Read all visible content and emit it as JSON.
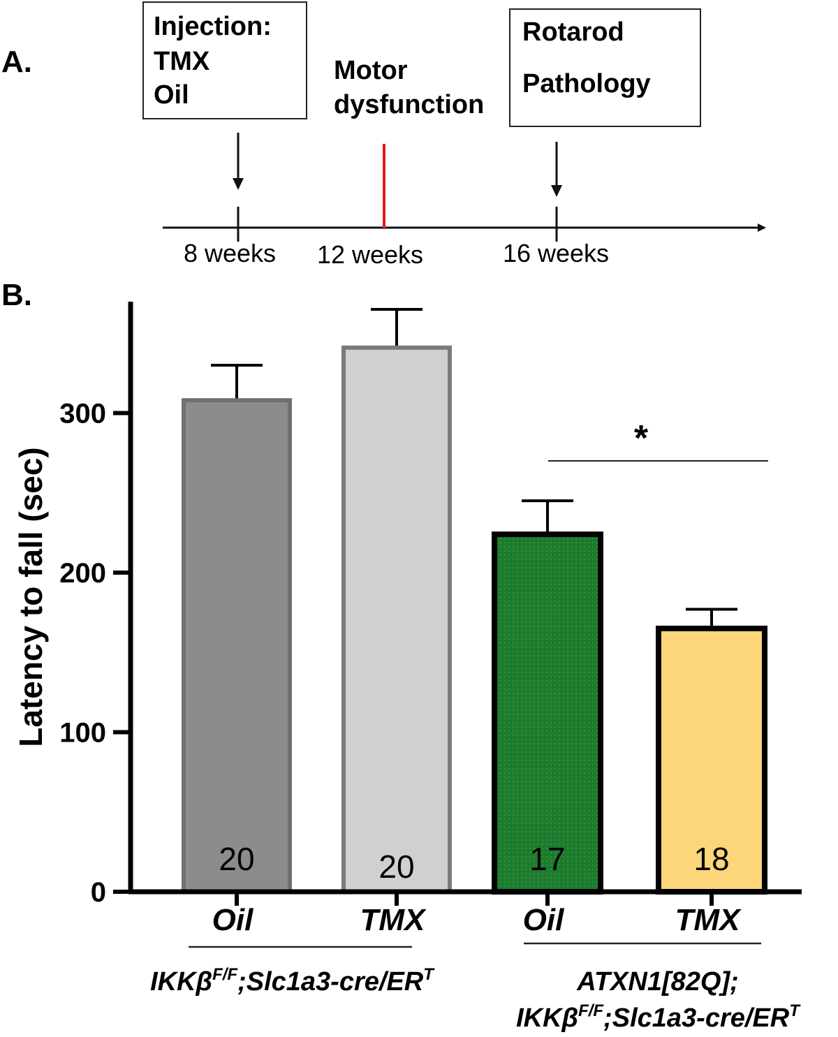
{
  "panel_a": {
    "label": "A.",
    "box_injection": [
      "Injection:",
      "TMX",
      "Oil"
    ],
    "motor_label": [
      "Motor",
      "dysfunction"
    ],
    "box_rotarod": [
      "Rotarod",
      "Pathology"
    ],
    "timeline_ticks": [
      "8 weeks",
      "12 weeks",
      "16 weeks"
    ],
    "colors": {
      "motor_marker": "#e01b1b",
      "line": "#111111"
    }
  },
  "panel_b": {
    "label": "B."
  },
  "chart_data": {
    "type": "bar",
    "ylabel": "Latency to fall (sec)",
    "ylim": [
      0,
      380
    ],
    "yticks": [
      0,
      100,
      200,
      300
    ],
    "categories": [
      "Oil",
      "TMX",
      "Oil",
      "TMX"
    ],
    "values": [
      308,
      341,
      224,
      165
    ],
    "errors": [
      22,
      24,
      21,
      12
    ],
    "n_labels": [
      "20",
      "20",
      "17",
      "18"
    ],
    "bar_fill_colors": [
      "#8c8c8c",
      "#d0d0d0",
      "#1e7a2e",
      "#fdd67a"
    ],
    "bar_edge_colors": [
      "#707070",
      "#7a7a7a",
      "#000000",
      "#000000"
    ],
    "groups": [
      {
        "lines": [
          "IKKβ",
          "F/F",
          ";Slc1a3-cre/ER",
          "T"
        ]
      },
      {
        "line1": "ATXN1[82Q];",
        "lines": [
          "IKKβ",
          "F/F",
          ";Slc1a3-cre/ER",
          "T"
        ]
      }
    ],
    "significance": {
      "symbol": "*",
      "between": [
        2,
        3
      ]
    },
    "grid": false,
    "legend": "none"
  }
}
